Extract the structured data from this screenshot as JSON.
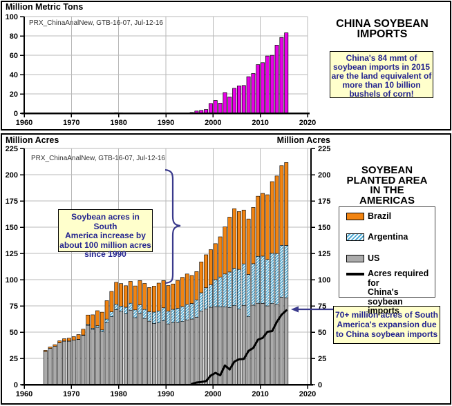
{
  "top_panel": {
    "axis_title": "Million Metric Tons",
    "watermark": "PRX_ChinaAnalNew, GTB-16-07, Jul-12-16",
    "title": "CHINA SOYBEAN\nIMPORTS",
    "callout": "China's 84 mmt of\nsoybean imports in 2015\nare the land equivalent of\nmore than 10 billion\nbushels of corn!"
  },
  "bottom_panel": {
    "axis_title_left": "Million Acres",
    "axis_title_right": "Million Acres",
    "watermark": "PRX_ChinaAnalNew, GTB-16-07, Jul-12-16",
    "title": "SOYBEAN\nPLANTED AREA\nIN THE\nAMERICAS",
    "callout_increase": "Soybean acres in South\nAmerica increase by\nabout 100 million acres\nsince 1990",
    "callout_expansion": "70+ million acres of South\nAmerica's expansion due\nto China soybean imports",
    "legend": {
      "items": [
        {
          "label": "Brazil",
          "swatch": "solid-orange"
        },
        {
          "label": "Argentina",
          "swatch": "blue-hatch"
        },
        {
          "label": "US",
          "swatch": "solid-gray"
        },
        {
          "label": "Acres required for\nChina's soybean\nimports",
          "swatch": "black-line"
        }
      ]
    }
  },
  "colors": {
    "imports_bar": "#E800E8",
    "brazil": "#F28411",
    "argentina_stripe": "#4FAAD4",
    "us": "#ABABAB",
    "line": "#000000",
    "annotation": "#3A3A8C",
    "callout_bg": "#FFFFCC",
    "grid": "#B8B8B8",
    "axis": "#000000"
  },
  "chart_data": [
    {
      "type": "bar",
      "title": "CHINA SOYBEAN IMPORTS",
      "ylabel": "Million Metric Tons",
      "ylim": [
        0,
        100
      ],
      "yticks": [
        0,
        20,
        40,
        60,
        80,
        100
      ],
      "xlim": [
        1960,
        2020
      ],
      "xticks": [
        1960,
        1970,
        1980,
        1990,
        2000,
        2010,
        2020
      ],
      "years": [
        1964,
        1965,
        1966,
        1967,
        1968,
        1969,
        1970,
        1971,
        1972,
        1973,
        1974,
        1975,
        1976,
        1977,
        1978,
        1979,
        1980,
        1981,
        1982,
        1983,
        1984,
        1985,
        1986,
        1987,
        1988,
        1989,
        1990,
        1991,
        1992,
        1993,
        1994,
        1995,
        1996,
        1997,
        1998,
        1999,
        2000,
        2001,
        2002,
        2003,
        2004,
        2005,
        2006,
        2007,
        2008,
        2009,
        2010,
        2011,
        2012,
        2013,
        2014,
        2015
      ],
      "values": [
        0,
        0,
        0,
        0,
        0,
        0,
        0,
        0,
        0,
        0,
        0,
        0,
        0,
        0.3,
        0.5,
        0.6,
        0.5,
        0.3,
        0.1,
        0,
        0,
        0,
        0,
        0,
        0,
        0,
        0,
        0,
        0,
        0,
        0.2,
        0.8,
        2.3,
        2.9,
        3.9,
        10.1,
        13.2,
        10.4,
        21.4,
        16.9,
        25.8,
        28.3,
        28.7,
        37.8,
        41.1,
        50.3,
        52.3,
        59.2,
        59.9,
        70.4,
        78.4,
        83.2
      ]
    },
    {
      "type": "stacked-bar-with-line",
      "title": "SOYBEAN PLANTED AREA IN THE AMERICAS",
      "ylabel_left": "Million Acres",
      "ylabel_right": "Million Acres",
      "ylim": [
        0,
        225
      ],
      "yticks": [
        0,
        25,
        50,
        75,
        100,
        125,
        150,
        175,
        200,
        225
      ],
      "xlim": [
        1960,
        2020
      ],
      "xticks": [
        1960,
        1970,
        1980,
        1990,
        2000,
        2010,
        2020
      ],
      "years": [
        1964,
        1965,
        1966,
        1967,
        1968,
        1969,
        1970,
        1971,
        1972,
        1973,
        1974,
        1975,
        1976,
        1977,
        1978,
        1979,
        1980,
        1981,
        1982,
        1983,
        1984,
        1985,
        1986,
        1987,
        1988,
        1989,
        1990,
        1991,
        1992,
        1993,
        1994,
        1995,
        1996,
        1997,
        1998,
        1999,
        2000,
        2001,
        2002,
        2003,
        2004,
        2005,
        2006,
        2007,
        2008,
        2009,
        2010,
        2011,
        2012,
        2013,
        2014,
        2015
      ],
      "series": [
        {
          "name": "US",
          "values": [
            31.6,
            34.5,
            36.5,
            39.8,
            41.4,
            41.4,
            42.3,
            43.0,
            46.9,
            56.5,
            52.5,
            54.6,
            50.3,
            59.0,
            64.7,
            71.4,
            69.9,
            67.5,
            70.9,
            63.8,
            67.8,
            63.1,
            60.4,
            58.2,
            58.8,
            60.8,
            57.8,
            59.2,
            59.2,
            60.1,
            61.7,
            62.5,
            64.2,
            70.0,
            72.0,
            73.7,
            74.3,
            74.1,
            74.0,
            73.4,
            75.2,
            72.0,
            75.5,
            64.7,
            75.7,
            77.5,
            77.4,
            75.0,
            77.2,
            76.5,
            83.3,
            82.7
          ]
        },
        {
          "name": "Argentina",
          "values": [
            0,
            0,
            0,
            0.1,
            0.1,
            0.1,
            0.1,
            0.2,
            0.4,
            0.9,
            1.2,
            1.5,
            1.8,
            3.4,
            4.6,
            5.2,
            4.9,
            6.2,
            6.6,
            7.4,
            8.2,
            8.5,
            9.1,
            10.9,
            11.4,
            12.4,
            12.2,
            12.5,
            13.5,
            14.3,
            14.8,
            14.8,
            16.5,
            17.5,
            20.3,
            21.5,
            25.7,
            28.4,
            31.4,
            33.9,
            35.6,
            37.8,
            39.5,
            40.3,
            39.5,
            44.7,
            45.0,
            44.2,
            47.9,
            48.4,
            49.4,
            49.9
          ]
        },
        {
          "name": "Brazil",
          "values": [
            1.0,
            1.3,
            1.5,
            1.8,
            2.2,
            2.7,
            3.3,
            4.5,
            5.5,
            8.9,
            12.8,
            14.3,
            16.9,
            17.6,
            19.5,
            20.9,
            21.5,
            20.5,
            20.9,
            22.8,
            23.1,
            24.8,
            23.0,
            24.7,
            26.5,
            25.9,
            24.4,
            24.2,
            26.5,
            27.8,
            28.9,
            26.7,
            27.0,
            29.4,
            31.4,
            33.4,
            34.3,
            38.3,
            44.9,
            52.3,
            56.8,
            55.1,
            51.3,
            52.8,
            53.6,
            57.3,
            59.8,
            61.7,
            68.3,
            73.9,
            76.0,
            79.0
          ]
        }
      ],
      "line_series": {
        "name": "Acres required for China's soybean imports",
        "years": [
          1995,
          1996,
          1997,
          1998,
          1999,
          2000,
          2001,
          2002,
          2003,
          2004,
          2005,
          2006,
          2007,
          2008,
          2009,
          2010,
          2011,
          2012,
          2013,
          2014,
          2015
        ],
        "values": [
          0.7,
          2.0,
          2.5,
          3.3,
          8.6,
          11.2,
          8.8,
          18.2,
          14.4,
          21.9,
          24.1,
          24.4,
          32.1,
          34.9,
          42.8,
          44.5,
          50.3,
          50.9,
          59.8,
          66.6,
          70.7
        ]
      }
    }
  ]
}
